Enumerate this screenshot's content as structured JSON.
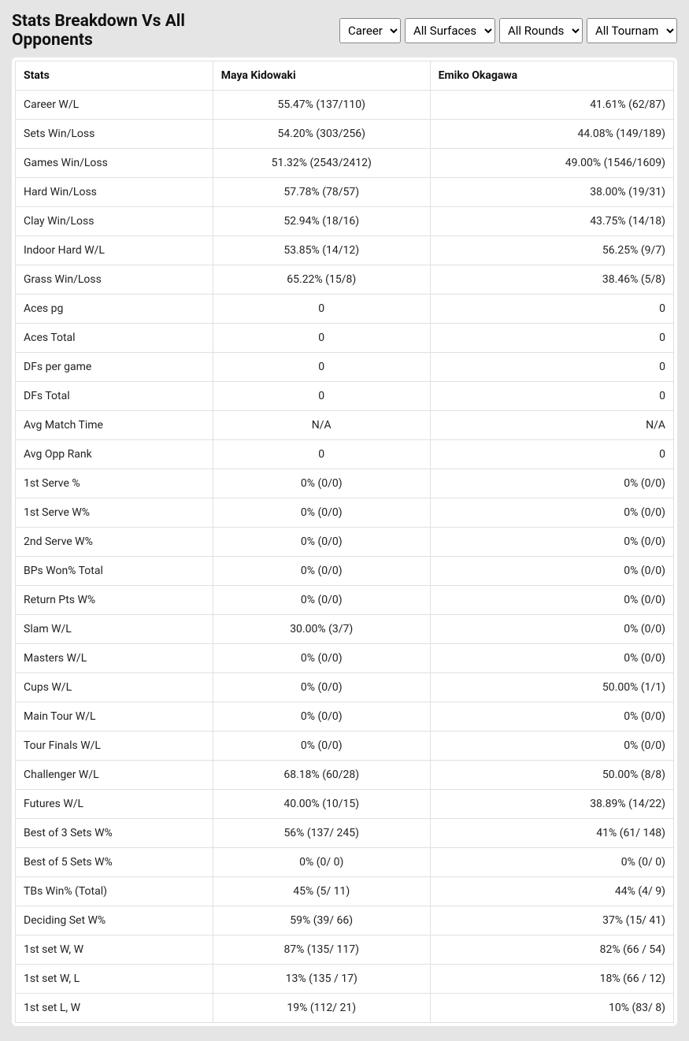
{
  "header": {
    "title": "Stats Breakdown Vs All Opponents"
  },
  "filters": {
    "career": {
      "selected": "Career",
      "options": [
        "Career"
      ]
    },
    "surface": {
      "selected": "All Surfaces",
      "options": [
        "All Surfaces"
      ]
    },
    "rounds": {
      "selected": "All Rounds",
      "options": [
        "All Rounds"
      ]
    },
    "tournaments": {
      "selected": "All Tournaments",
      "options": [
        "All Tournaments"
      ]
    }
  },
  "table": {
    "columns": [
      "Stats",
      "Maya Kidowaki",
      "Emiko Okagawa"
    ],
    "rows": [
      {
        "stat": "Career W/L",
        "p1": "55.47% (137/110)",
        "p2": "41.61% (62/87)"
      },
      {
        "stat": "Sets Win/Loss",
        "p1": "54.20% (303/256)",
        "p2": "44.08% (149/189)"
      },
      {
        "stat": "Games Win/Loss",
        "p1": "51.32% (2543/2412)",
        "p2": "49.00% (1546/1609)"
      },
      {
        "stat": "Hard Win/Loss",
        "p1": "57.78% (78/57)",
        "p2": "38.00% (19/31)"
      },
      {
        "stat": "Clay Win/Loss",
        "p1": "52.94% (18/16)",
        "p2": "43.75% (14/18)"
      },
      {
        "stat": "Indoor Hard W/L",
        "p1": "53.85% (14/12)",
        "p2": "56.25% (9/7)"
      },
      {
        "stat": "Grass Win/Loss",
        "p1": "65.22% (15/8)",
        "p2": "38.46% (5/8)"
      },
      {
        "stat": "Aces pg",
        "p1": "0",
        "p2": "0"
      },
      {
        "stat": "Aces Total",
        "p1": "0",
        "p2": "0"
      },
      {
        "stat": "DFs per game",
        "p1": "0",
        "p2": "0"
      },
      {
        "stat": "DFs Total",
        "p1": "0",
        "p2": "0"
      },
      {
        "stat": "Avg Match Time",
        "p1": "N/A",
        "p2": "N/A"
      },
      {
        "stat": "Avg Opp Rank",
        "p1": "0",
        "p2": "0"
      },
      {
        "stat": "1st Serve %",
        "p1": "0% (0/0)",
        "p2": "0% (0/0)"
      },
      {
        "stat": "1st Serve W%",
        "p1": "0% (0/0)",
        "p2": "0% (0/0)"
      },
      {
        "stat": "2nd Serve W%",
        "p1": "0% (0/0)",
        "p2": "0% (0/0)"
      },
      {
        "stat": "BPs Won% Total",
        "p1": "0% (0/0)",
        "p2": "0% (0/0)"
      },
      {
        "stat": "Return Pts W%",
        "p1": "0% (0/0)",
        "p2": "0% (0/0)"
      },
      {
        "stat": "Slam W/L",
        "p1": "30.00% (3/7)",
        "p2": "0% (0/0)"
      },
      {
        "stat": "Masters W/L",
        "p1": "0% (0/0)",
        "p2": "0% (0/0)"
      },
      {
        "stat": "Cups W/L",
        "p1": "0% (0/0)",
        "p2": "50.00% (1/1)"
      },
      {
        "stat": "Main Tour W/L",
        "p1": "0% (0/0)",
        "p2": "0% (0/0)"
      },
      {
        "stat": "Tour Finals W/L",
        "p1": "0% (0/0)",
        "p2": "0% (0/0)"
      },
      {
        "stat": "Challenger W/L",
        "p1": "68.18% (60/28)",
        "p2": "50.00% (8/8)"
      },
      {
        "stat": "Futures W/L",
        "p1": "40.00% (10/15)",
        "p2": "38.89% (14/22)"
      },
      {
        "stat": "Best of 3 Sets W%",
        "p1": "56% (137/ 245)",
        "p2": "41% (61/ 148)"
      },
      {
        "stat": "Best of 5 Sets W%",
        "p1": "0% (0/ 0)",
        "p2": "0% (0/ 0)"
      },
      {
        "stat": "TBs Win% (Total)",
        "p1": "45% (5/ 11)",
        "p2": "44% (4/ 9)"
      },
      {
        "stat": "Deciding Set W%",
        "p1": "59% (39/ 66)",
        "p2": "37% (15/ 41)"
      },
      {
        "stat": "1st set W, W",
        "p1": "87% (135/ 117)",
        "p2": "82% (66 / 54)"
      },
      {
        "stat": "1st set W, L",
        "p1": "13% (135 / 17)",
        "p2": "18% (66 / 12)"
      },
      {
        "stat": "1st set L, W",
        "p1": "19% (112/ 21)",
        "p2": "10% (83/ 8)"
      }
    ]
  },
  "styling": {
    "background_color": "#e5e5e5",
    "table_background": "#ffffff",
    "border_color": "#e0e0e0",
    "text_color": "#222222",
    "title_fontsize": 21,
    "body_fontsize": 14
  }
}
